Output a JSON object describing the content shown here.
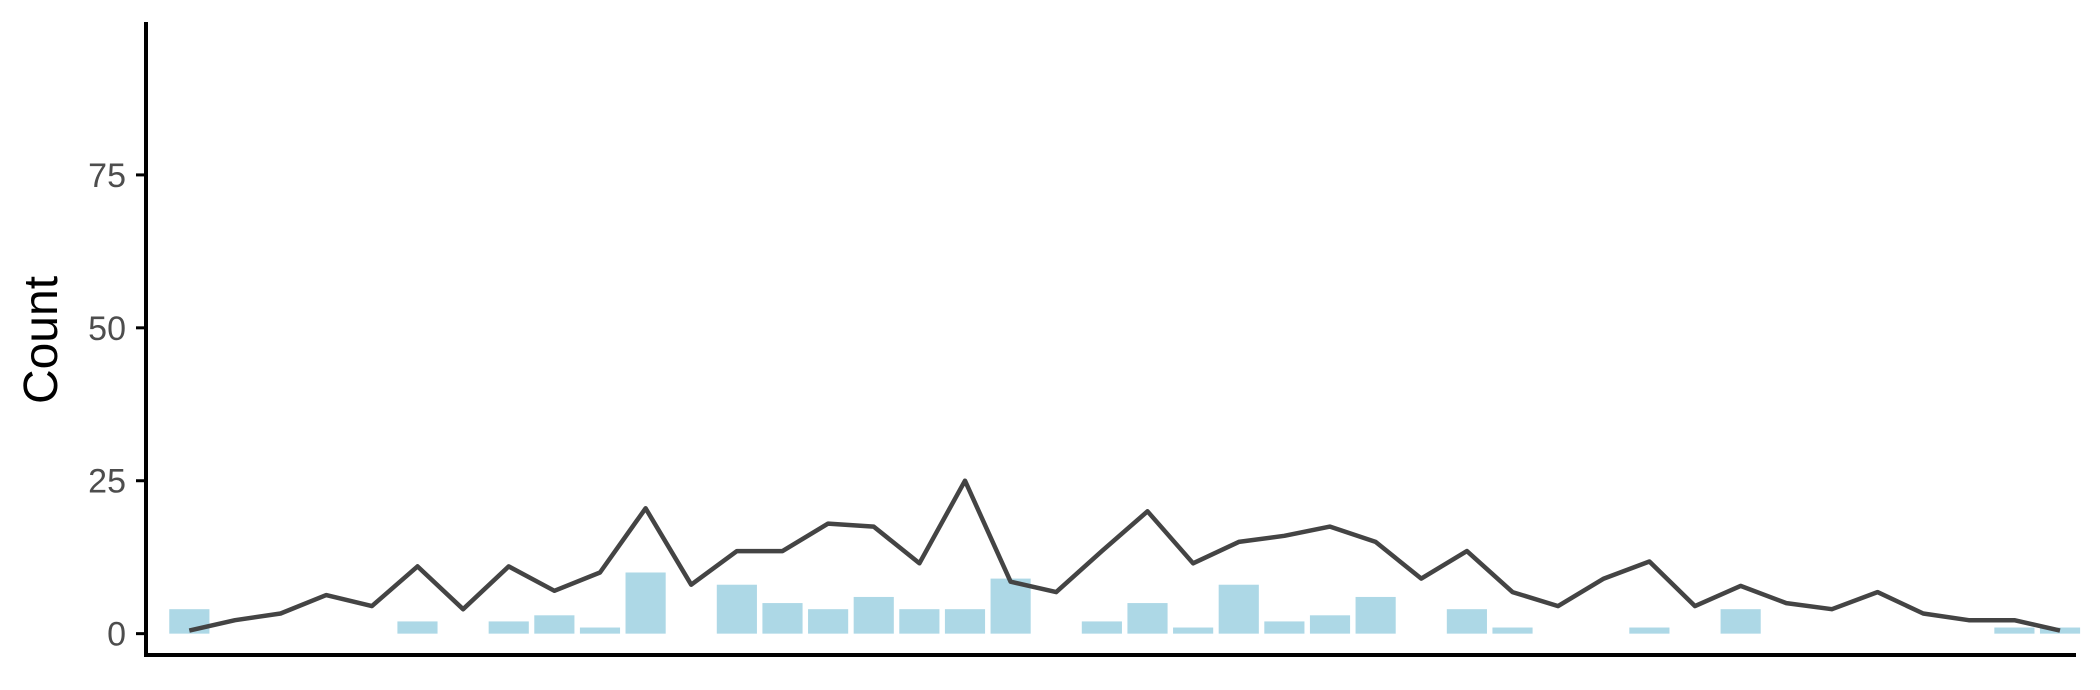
{
  "chart_data": {
    "type": "bar",
    "title": "",
    "xlabel": "",
    "ylabel": "Count",
    "ylim": [
      -3,
      100
    ],
    "yticks": [
      0,
      25,
      50,
      75
    ],
    "ytick_labels": [
      "0",
      "25",
      "50",
      "75"
    ],
    "x_tick_labels_shown": false,
    "grid": false,
    "bar_color": "#add8e6",
    "line_color": "#444444",
    "series": [
      {
        "type": "bar",
        "values": [
          4,
          0,
          0,
          0,
          0,
          2,
          0,
          2,
          3,
          1,
          10,
          0,
          8,
          5,
          4,
          6,
          4,
          4,
          9,
          0,
          2,
          5,
          1,
          8,
          2,
          3,
          6,
          0,
          4,
          1,
          0,
          0,
          1,
          0,
          4,
          0,
          0,
          0,
          0,
          0,
          1,
          1
        ]
      },
      {
        "type": "line",
        "values": [
          0.5,
          2.2,
          3.3,
          6.3,
          4.5,
          11,
          4,
          11,
          7,
          10,
          20.5,
          8,
          13.5,
          13.5,
          18,
          17.5,
          11.5,
          25,
          8.5,
          6.8,
          13.5,
          20,
          11.5,
          15,
          16,
          17.5,
          15,
          9,
          13.5,
          6.8,
          4.5,
          9,
          11.8,
          4.5,
          7.8,
          5,
          4,
          6.8,
          3.3,
          2.2,
          2.2,
          0.5
        ]
      }
    ]
  }
}
